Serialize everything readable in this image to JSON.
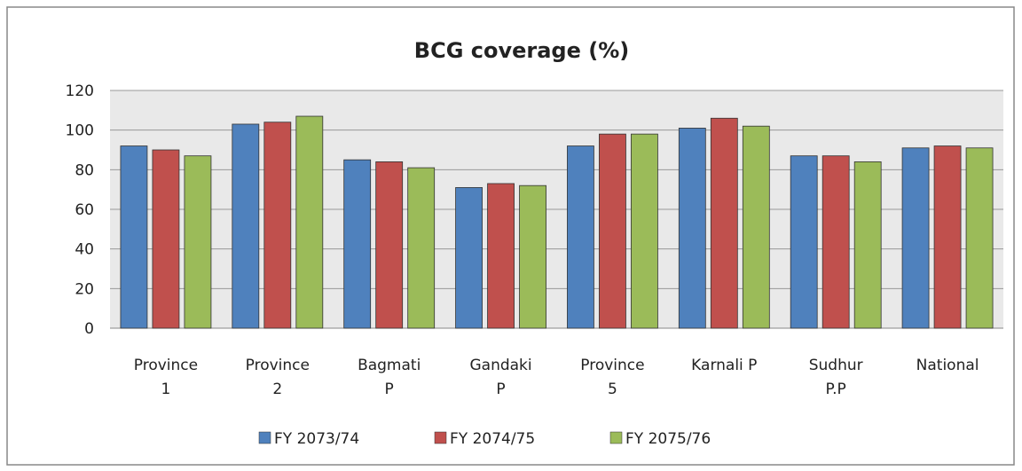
{
  "chart_data": {
    "type": "bar",
    "title": "BCG coverage (%)",
    "categories": [
      "Province\n1",
      "Province\n2",
      "Bagmati\nP",
      "Gandaki\nP",
      "Province\n5",
      "Karnali P",
      "Sudhur\nP.P",
      "National"
    ],
    "series": [
      {
        "name": "FY 2073/74",
        "color": "#4f81bd",
        "values": [
          92,
          103,
          85,
          71,
          92,
          101,
          87,
          91
        ]
      },
      {
        "name": "FY 2074/75",
        "color": "#c0504d",
        "values": [
          90,
          104,
          84,
          73,
          98,
          106,
          87,
          92
        ]
      },
      {
        "name": "FY 2075/76",
        "color": "#9bbb59",
        "values": [
          87,
          107,
          81,
          72,
          98,
          102,
          84,
          91
        ]
      }
    ],
    "ylim": [
      0,
      120
    ],
    "yticks": [
      0,
      20,
      40,
      60,
      80,
      100,
      120
    ],
    "grid": true,
    "legend": "bottom"
  }
}
